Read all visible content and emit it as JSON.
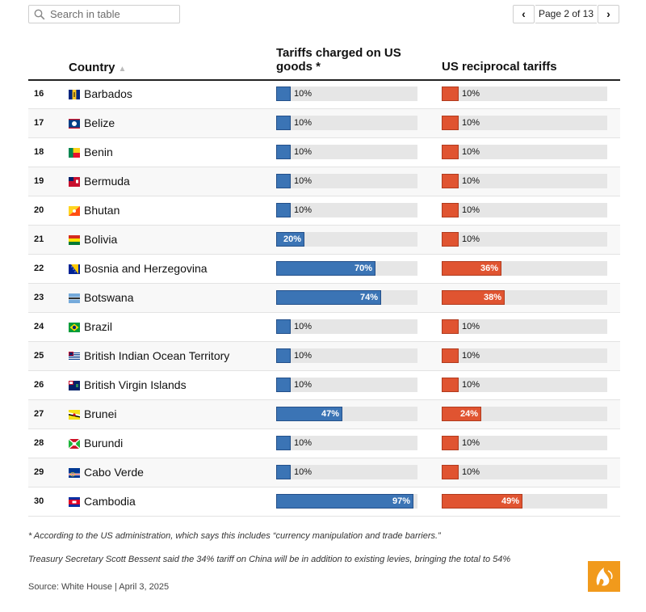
{
  "search": {
    "placeholder": "Search in table"
  },
  "pager": {
    "label": "Page 2 of 13",
    "prev": "‹",
    "next": "›"
  },
  "headers": {
    "country": "Country",
    "col1": "Tariffs charged on US goods *",
    "col2": "US reciprocal tariffs"
  },
  "colors": {
    "blue": "#3b74b5",
    "red": "#e05431",
    "logo": "#f19a1c"
  },
  "chart_data": {
    "type": "table",
    "columns": [
      "Country",
      "Tariffs charged on US goods *",
      "US reciprocal tariffs"
    ],
    "max": 100,
    "rows": [
      {
        "rank": "16",
        "country": "Barbados",
        "flag": "barbados-flag-icon",
        "charged": 10,
        "reciprocal": 10,
        "charged_label": "10%",
        "reciprocal_label": "10%"
      },
      {
        "rank": "17",
        "country": "Belize",
        "flag": "belize-flag-icon",
        "charged": 10,
        "reciprocal": 10,
        "charged_label": "10%",
        "reciprocal_label": "10%"
      },
      {
        "rank": "18",
        "country": "Benin",
        "flag": "benin-flag-icon",
        "charged": 10,
        "reciprocal": 10,
        "charged_label": "10%",
        "reciprocal_label": "10%"
      },
      {
        "rank": "19",
        "country": "Bermuda",
        "flag": "bermuda-flag-icon",
        "charged": 10,
        "reciprocal": 10,
        "charged_label": "10%",
        "reciprocal_label": "10%"
      },
      {
        "rank": "20",
        "country": "Bhutan",
        "flag": "bhutan-flag-icon",
        "charged": 10,
        "reciprocal": 10,
        "charged_label": "10%",
        "reciprocal_label": "10%"
      },
      {
        "rank": "21",
        "country": "Bolivia",
        "flag": "bolivia-flag-icon",
        "charged": 20,
        "reciprocal": 10,
        "charged_label": "20%",
        "reciprocal_label": "10%"
      },
      {
        "rank": "22",
        "country": "Bosnia and Herzegovina",
        "flag": "bosnia-flag-icon",
        "charged": 70,
        "reciprocal": 36,
        "charged_label": "70%",
        "reciprocal_label": "36%"
      },
      {
        "rank": "23",
        "country": "Botswana",
        "flag": "botswana-flag-icon",
        "charged": 74,
        "reciprocal": 38,
        "charged_label": "74%",
        "reciprocal_label": "38%"
      },
      {
        "rank": "24",
        "country": "Brazil",
        "flag": "brazil-flag-icon",
        "charged": 10,
        "reciprocal": 10,
        "charged_label": "10%",
        "reciprocal_label": "10%"
      },
      {
        "rank": "25",
        "country": "British Indian Ocean Territory",
        "flag": "biot-flag-icon",
        "charged": 10,
        "reciprocal": 10,
        "charged_label": "10%",
        "reciprocal_label": "10%"
      },
      {
        "rank": "26",
        "country": "British Virgin Islands",
        "flag": "bvi-flag-icon",
        "charged": 10,
        "reciprocal": 10,
        "charged_label": "10%",
        "reciprocal_label": "10%"
      },
      {
        "rank": "27",
        "country": "Brunei",
        "flag": "brunei-flag-icon",
        "charged": 47,
        "reciprocal": 24,
        "charged_label": "47%",
        "reciprocal_label": "24%"
      },
      {
        "rank": "28",
        "country": "Burundi",
        "flag": "burundi-flag-icon",
        "charged": 10,
        "reciprocal": 10,
        "charged_label": "10%",
        "reciprocal_label": "10%"
      },
      {
        "rank": "29",
        "country": "Cabo Verde",
        "flag": "cabo-verde-flag-icon",
        "charged": 10,
        "reciprocal": 10,
        "charged_label": "10%",
        "reciprocal_label": "10%"
      },
      {
        "rank": "30",
        "country": "Cambodia",
        "flag": "cambodia-flag-icon",
        "charged": 97,
        "reciprocal": 49,
        "charged_label": "97%",
        "reciprocal_label": "49%"
      }
    ]
  },
  "notes": {
    "note1": "* According to the US administration, which says this includes “currency manipulation and trade barriers.”",
    "note2": "Treasury Secretary Scott Bessent said the 34% tariff on China will be in addition to existing levies, bringing the total to 54%",
    "source": "Source: White House | April 3, 2025"
  },
  "logo": {
    "icon": "al-jazeera-logo-icon"
  }
}
